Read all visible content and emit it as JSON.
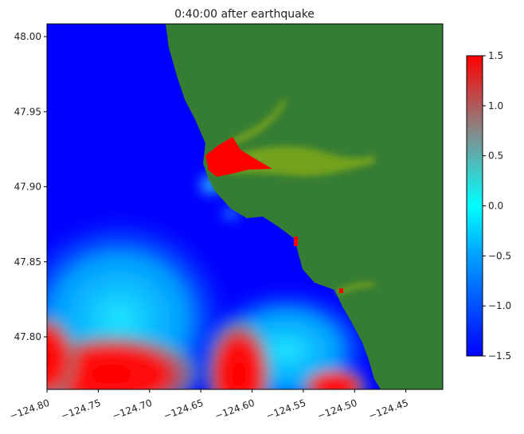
{
  "chart_data": {
    "type": "heatmap",
    "title": "0:40:00 after earthquake",
    "xlabel": "",
    "ylabel": "",
    "xlim": [
      -124.8,
      -124.414
    ],
    "ylim": [
      47.765,
      48.0085
    ],
    "xticks": [
      -124.8,
      -124.75,
      -124.7,
      -124.65,
      -124.6,
      -124.55,
      -124.5,
      -124.45
    ],
    "xtick_labels": [
      "−124.80",
      "−124.75",
      "−124.70",
      "−124.65",
      "−124.60",
      "−124.55",
      "−124.50",
      "−124.45"
    ],
    "yticks": [
      48.0,
      47.95,
      47.9,
      47.85,
      47.8
    ],
    "ytick_labels": [
      "48.00",
      "47.95",
      "47.90",
      "47.85",
      "47.80"
    ],
    "grid": false,
    "colorbar": {
      "range": [
        -1.5,
        1.5
      ],
      "ticks": [
        1.5,
        1.0,
        0.5,
        0.0,
        -0.5,
        -1.0,
        -1.5
      ],
      "tick_labels": [
        "1.5",
        "1.0",
        "0.5",
        "0.0",
        "−0.5",
        "−1.0",
        "−1.5"
      ],
      "colormap_stops": [
        {
          "value": -1.5,
          "color": "#0000ff"
        },
        {
          "value": -0.5,
          "color": "#00a0ff"
        },
        {
          "value": 0.0,
          "color": "#00ffff"
        },
        {
          "value": 0.75,
          "color": "#888888"
        },
        {
          "value": 1.5,
          "color": "#ff0000"
        }
      ],
      "placement": "right"
    },
    "colors": {
      "land": "#357d35",
      "deep_negative": "#0000ff",
      "inundation": "#7fa81a",
      "positive_max": "#ff0000"
    }
  }
}
